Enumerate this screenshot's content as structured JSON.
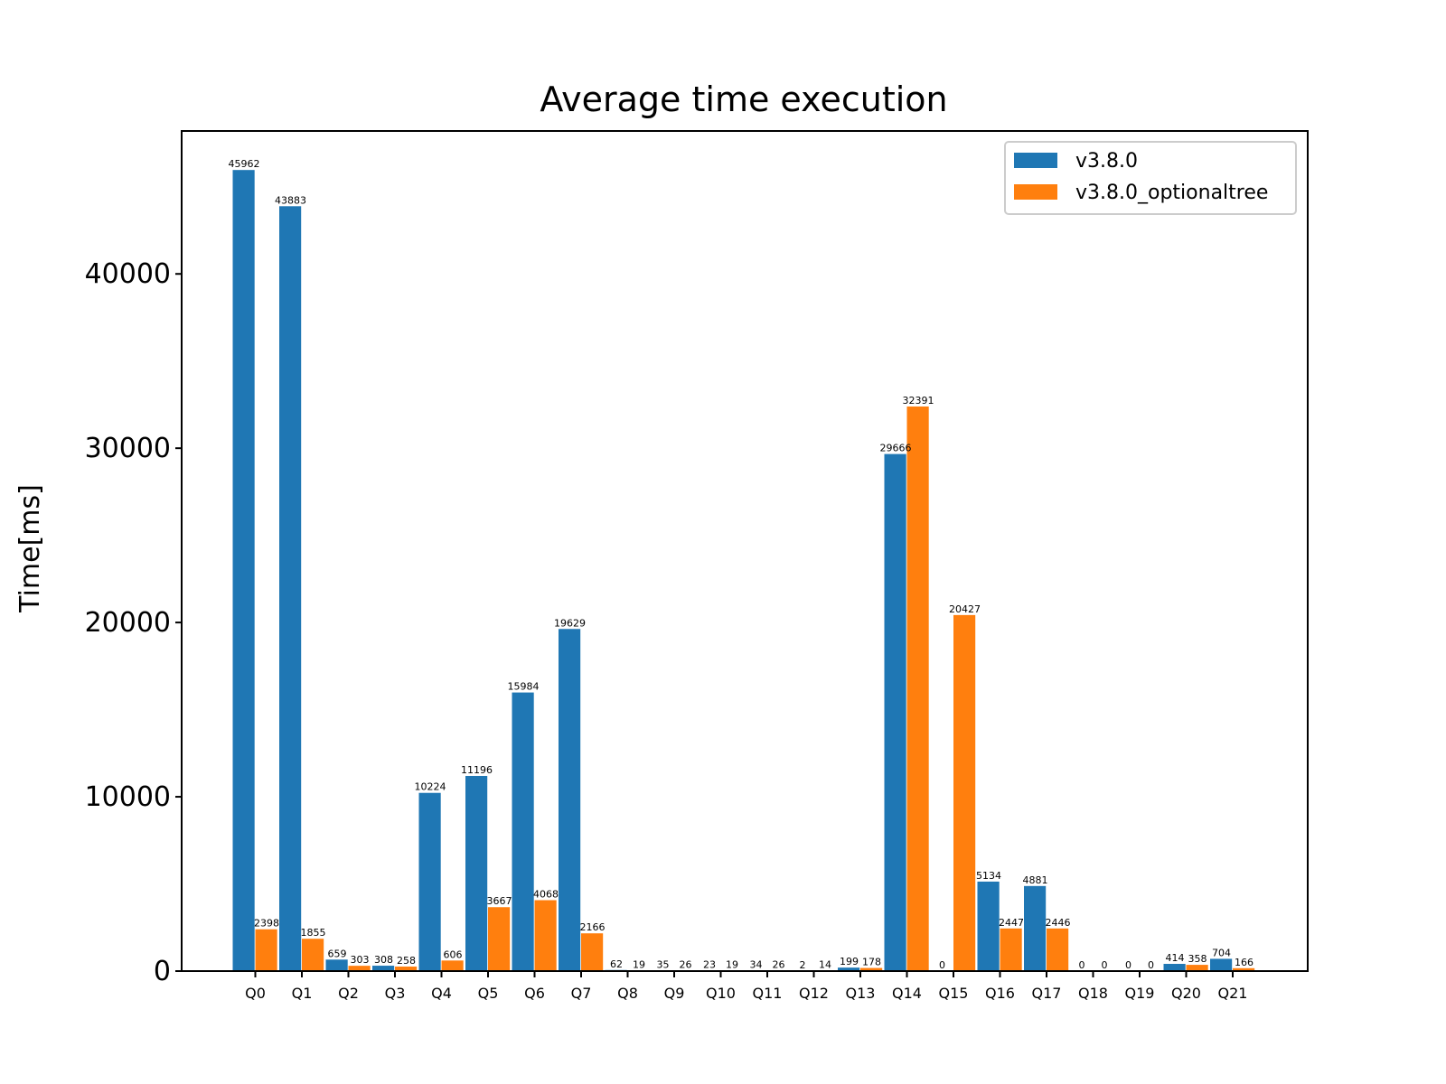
{
  "chart_data": {
    "type": "bar",
    "title": "Average time execution",
    "xlabel": "",
    "ylabel": "Time[ms]",
    "ylim": [
      0,
      48200
    ],
    "yticks": [
      0,
      10000,
      20000,
      30000,
      40000
    ],
    "grid": false,
    "legend_position": "top-right",
    "categories": [
      "Q0",
      "Q1",
      "Q2",
      "Q3",
      "Q4",
      "Q5",
      "Q6",
      "Q7",
      "Q8",
      "Q9",
      "Q10",
      "Q11",
      "Q12",
      "Q13",
      "Q14",
      "Q15",
      "Q16",
      "Q17",
      "Q18",
      "Q19",
      "Q20",
      "Q21"
    ],
    "series": [
      {
        "name": "v3.8.0",
        "color": "#1f77b4",
        "values": [
          45962,
          43883,
          659,
          308,
          10224,
          11196,
          15984,
          19629,
          62,
          35,
          23,
          34,
          2,
          199,
          29666,
          0,
          5134,
          4881,
          0,
          0,
          414,
          704
        ]
      },
      {
        "name": "v3.8.0_optionaltree",
        "color": "#ff7f0e",
        "values": [
          2398,
          1855,
          303,
          258,
          606,
          3667,
          4068,
          2166,
          19,
          26,
          19,
          26,
          14,
          178,
          32391,
          20427,
          2447,
          2446,
          0,
          0,
          358,
          166
        ]
      }
    ]
  }
}
